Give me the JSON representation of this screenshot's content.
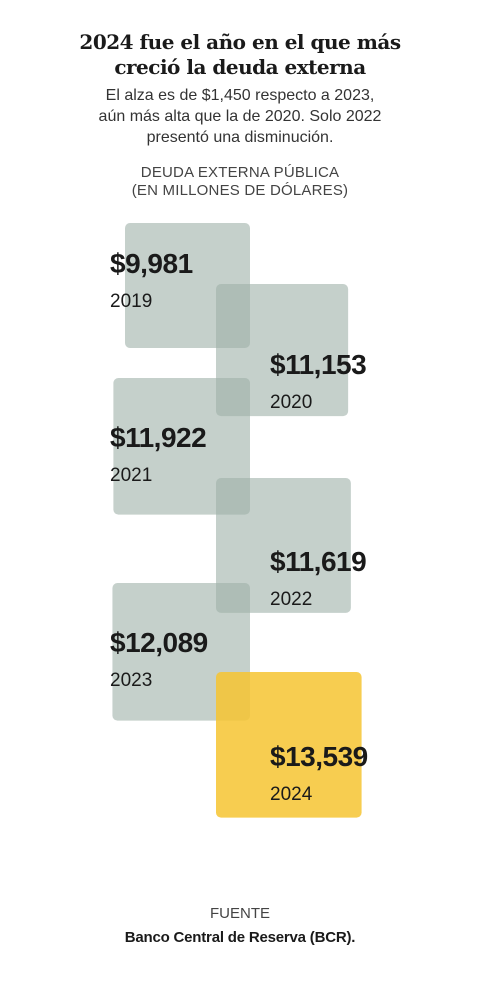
{
  "header": {
    "title_line1": "2024 fue el año en el que más",
    "title_line2": "creció la deuda externa",
    "subtitle_line1": "El alza es de $1,450 respecto a 2023,",
    "subtitle_line2": "aún más alta que la de 2020. Solo 2022",
    "subtitle_line3": "presentó una disminución."
  },
  "chart_label": {
    "line1": "DEUDA EXTERNA PÚBLICA",
    "line2": "(EN MILLONES DE DÓLARES)"
  },
  "chart_data": {
    "type": "bar",
    "categories": [
      "2019",
      "2020",
      "2021",
      "2022",
      "2023",
      "2024"
    ],
    "values": [
      9981,
      11153,
      11922,
      11619,
      12089,
      13539
    ],
    "value_labels": [
      "$9,981",
      "$11,153",
      "$11,922",
      "$11,619",
      "$12,089",
      "$13,539"
    ],
    "unit": "millones de dólares",
    "colors": {
      "default": "#9fb0a8",
      "highlight": "#f6c431",
      "label": "#1a1a1a"
    },
    "highlight_category": "2024"
  },
  "footer": {
    "source_label": "FUENTE",
    "source_text": "Banco Central de Reserva (BCR)."
  }
}
